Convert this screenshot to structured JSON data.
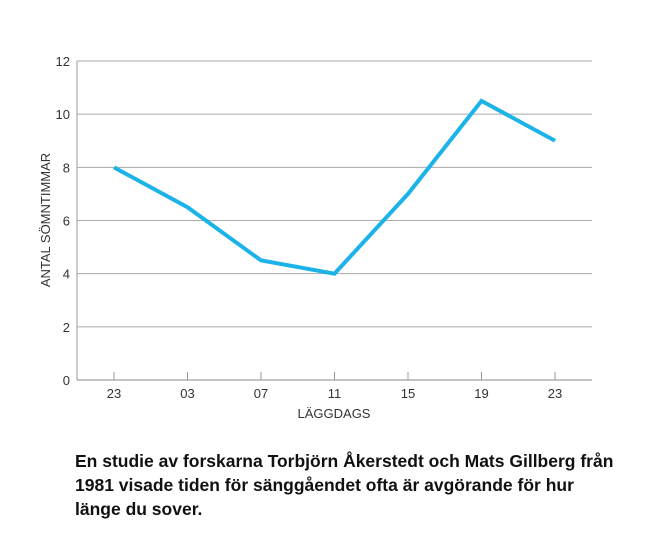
{
  "chart_data": {
    "type": "line",
    "title": "",
    "xlabel": "LÄGGDAGS",
    "ylabel": "ANTAL SÖMNTIMMAR",
    "categories": [
      "23",
      "03",
      "07",
      "11",
      "15",
      "19",
      "23"
    ],
    "values": [
      8,
      6.5,
      4.5,
      4,
      7,
      10.5,
      9
    ],
    "ylim": [
      0,
      12
    ],
    "yticks": [
      0,
      2,
      4,
      6,
      8,
      10,
      12
    ],
    "grid": true,
    "line_color": "#1cb4e8"
  },
  "caption": "En studie av forskarna Torbjörn Åkerstedt och Mats Gillberg från 1981 visade tiden för sänggåendet ofta är avgörande för hur länge du sover."
}
